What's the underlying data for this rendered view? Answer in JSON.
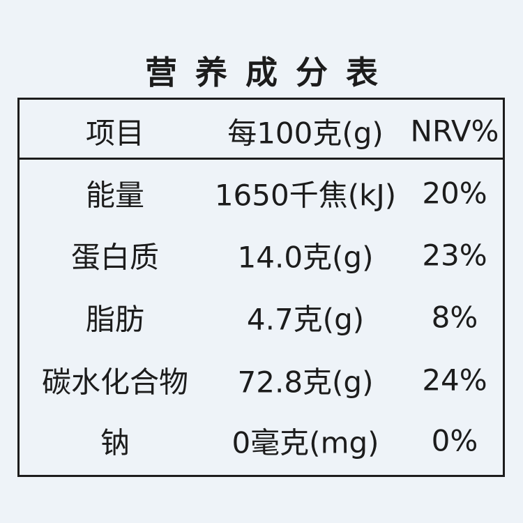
{
  "title": "营养成分表",
  "table": {
    "header": [
      "项目",
      "每100克(g)",
      "NRV%"
    ],
    "rows": [
      [
        "能量",
        "1650千焦(kJ)",
        "20%"
      ],
      [
        "蛋白质",
        "14.0克(g)",
        "23%"
      ],
      [
        "脂肪",
        "4.7克(g)",
        "8%"
      ],
      [
        "碳水化合物",
        "72.8克(g)",
        "24%"
      ],
      [
        "钠",
        "0毫克(mg)",
        "0%"
      ]
    ]
  }
}
